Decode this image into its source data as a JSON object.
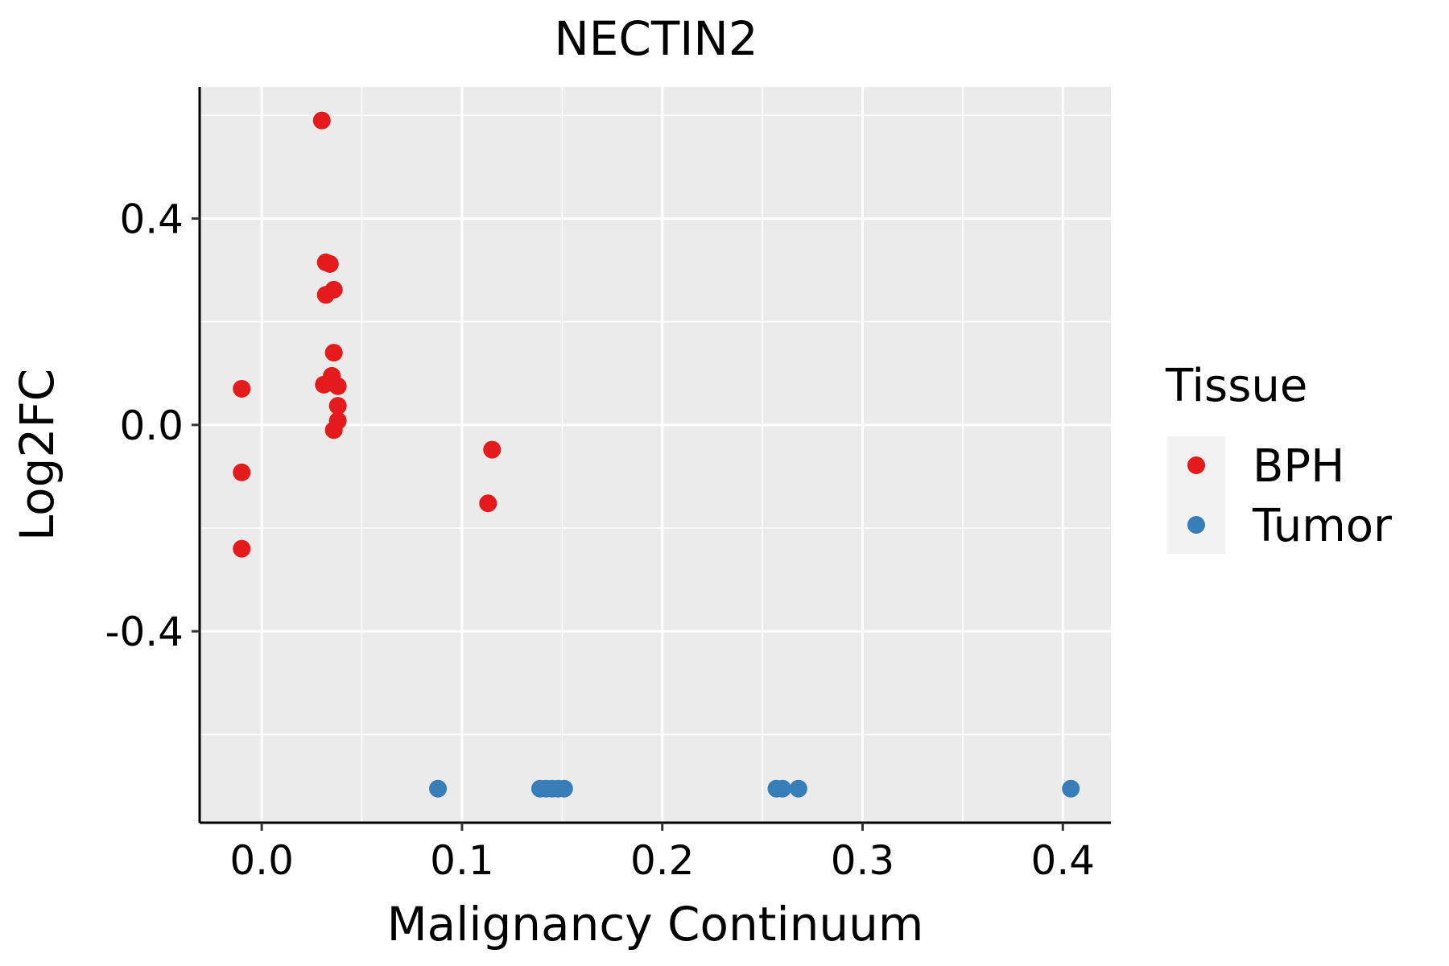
{
  "chart_data": {
    "type": "scatter",
    "title": "NECTIN2",
    "xlabel": "Malignancy Continuum",
    "ylabel": "Log2FC",
    "xlim": [
      -0.031,
      0.424
    ],
    "ylim": [
      -0.771,
      0.655
    ],
    "x_ticks": [
      0.0,
      0.1,
      0.2,
      0.3,
      0.4
    ],
    "x_tick_labels": [
      "0.0",
      "0.1",
      "0.2",
      "0.3",
      "0.4"
    ],
    "y_ticks": [
      -0.4,
      0.0,
      0.4
    ],
    "y_tick_labels": [
      "-0.4",
      "0.0",
      "0.4"
    ],
    "grid": true,
    "legend": {
      "title": "Tissue",
      "placement": "right"
    },
    "series": [
      {
        "name": "BPH",
        "color": "#E41A1C",
        "points": [
          {
            "x": 0.03,
            "y": 0.59
          },
          {
            "x": 0.032,
            "y": 0.315
          },
          {
            "x": 0.034,
            "y": 0.312
          },
          {
            "x": 0.036,
            "y": 0.262
          },
          {
            "x": 0.032,
            "y": 0.252
          },
          {
            "x": 0.036,
            "y": 0.14
          },
          {
            "x": 0.035,
            "y": 0.095
          },
          {
            "x": 0.031,
            "y": 0.078
          },
          {
            "x": 0.034,
            "y": 0.082
          },
          {
            "x": 0.038,
            "y": 0.075
          },
          {
            "x": 0.038,
            "y": 0.037
          },
          {
            "x": 0.038,
            "y": 0.008
          },
          {
            "x": 0.036,
            "y": -0.01
          },
          {
            "x": -0.01,
            "y": 0.07
          },
          {
            "x": -0.01,
            "y": -0.092
          },
          {
            "x": -0.01,
            "y": -0.24
          },
          {
            "x": 0.115,
            "y": -0.048
          },
          {
            "x": 0.113,
            "y": -0.152
          }
        ]
      },
      {
        "name": "Tumor",
        "color": "#377EB8",
        "points": [
          {
            "x": 0.088,
            "y": -0.705
          },
          {
            "x": 0.139,
            "y": -0.705
          },
          {
            "x": 0.142,
            "y": -0.705
          },
          {
            "x": 0.145,
            "y": -0.705
          },
          {
            "x": 0.148,
            "y": -0.705
          },
          {
            "x": 0.151,
            "y": -0.705
          },
          {
            "x": 0.257,
            "y": -0.705
          },
          {
            "x": 0.26,
            "y": -0.705
          },
          {
            "x": 0.268,
            "y": -0.705
          },
          {
            "x": 0.404,
            "y": -0.705
          }
        ]
      }
    ]
  }
}
